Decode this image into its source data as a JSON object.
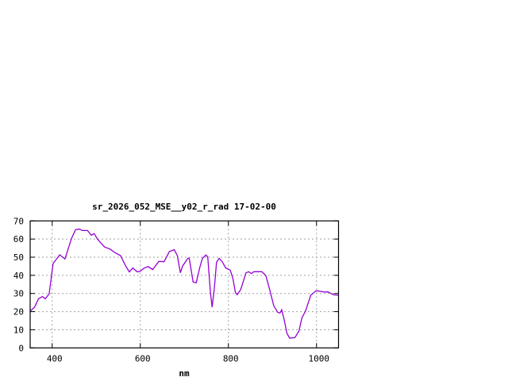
{
  "chart_data": {
    "type": "line",
    "title": "sr_2026_052_MSE__y02_r_rad 17-02-00",
    "xlabel": "nm",
    "ylabel": "",
    "xlim": [
      350,
      1050
    ],
    "ylim": [
      0,
      70
    ],
    "xticks": [
      400,
      600,
      800,
      1000
    ],
    "yticks": [
      0,
      10,
      20,
      30,
      40,
      50,
      60,
      70
    ],
    "grid": true,
    "legend": "none",
    "series": [
      {
        "color": "#9400d3",
        "x": [
          350,
          360,
          369,
          378,
          384,
          393,
          402,
          417,
          429,
          444,
          453,
          462,
          468,
          480,
          489,
          495,
          504,
          519,
          531,
          543,
          555,
          567,
          575,
          583,
          593,
          600,
          609,
          618,
          628,
          642,
          654,
          666,
          677,
          684,
          691,
          696,
          708,
          711,
          720,
          727,
          735,
          741,
          749,
          753,
          759,
          763,
          768,
          773,
          779,
          786,
          794,
          804,
          810,
          816,
          820,
          828,
          840,
          846,
          852,
          858,
          876,
          885,
          894,
          903,
          912,
          917,
          921,
          927,
          933,
          939,
          951,
          960,
          967,
          975,
          987,
          999,
          1008,
          1017,
          1026,
          1038,
          1049
        ],
        "y": [
          20.3,
          22.4,
          27.1,
          28.3,
          27.1,
          29.7,
          46.5,
          51.3,
          49,
          60.4,
          65.2,
          65.5,
          64.7,
          64.7,
          62.1,
          63,
          59.6,
          55.6,
          54.5,
          52.4,
          50.9,
          45.1,
          41.9,
          44,
          41.9,
          42.3,
          44,
          44.8,
          43.2,
          47.7,
          47.5,
          53.1,
          54.1,
          50.9,
          41.4,
          45.1,
          49.4,
          49.4,
          36.3,
          35.9,
          44.3,
          49.4,
          51.2,
          50.2,
          31.2,
          22.4,
          32.7,
          47.2,
          49.4,
          47.5,
          44,
          42.9,
          38.5,
          30.5,
          29.3,
          32.2,
          41.4,
          42,
          41,
          42,
          42,
          39.9,
          31.9,
          23.2,
          19.6,
          19.2,
          21,
          15.2,
          7.9,
          5.4,
          5.7,
          9.3,
          16.6,
          20.3,
          29,
          31.5,
          31.2,
          30.8,
          30.9,
          29.3,
          29
        ]
      }
    ]
  }
}
